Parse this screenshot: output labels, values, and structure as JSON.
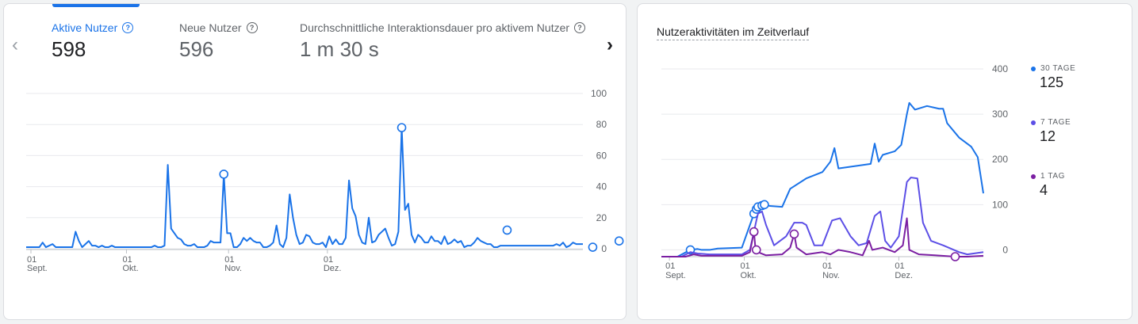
{
  "left_card": {
    "metrics": [
      {
        "label": "Aktive Nutzer",
        "value": "598",
        "active": true
      },
      {
        "label": "Neue Nutzer",
        "value": "596",
        "active": false
      },
      {
        "label": "Durchschnittliche Interaktionsdauer pro aktivem Nutzer",
        "value": "1 m 30 s",
        "active": false
      }
    ],
    "prev_icon": "chevron-left-icon",
    "next_icon": "chevron-right-icon"
  },
  "right_card": {
    "title": "Nutzeraktivitäten im Zeitverlauf",
    "legend": [
      {
        "label": "30 TAGE",
        "value": "125",
        "color": "#1a73e8"
      },
      {
        "label": "7 TAGE",
        "value": "12",
        "color": "#5c4fe6"
      },
      {
        "label": "1 TAG",
        "value": "4",
        "color": "#7b1fa2"
      }
    ]
  },
  "colors": {
    "accent": "#1a73e8",
    "series_30": "#1a73e8",
    "series_7": "#5c4fe6",
    "series_1": "#7b1fa2",
    "grid": "#e8eaed"
  },
  "chart_data": [
    {
      "type": "line",
      "title": "",
      "x_ticks": [
        {
          "day": "01",
          "month": "Sept."
        },
        {
          "day": "01",
          "month": "Okt."
        },
        {
          "day": "01",
          "month": "Nov."
        },
        {
          "day": "01",
          "month": "Dez."
        }
      ],
      "y_ticks": [
        0,
        20,
        40,
        60,
        80,
        100
      ],
      "ylim": [
        0,
        100
      ],
      "grid": true,
      "series": [
        {
          "color": "#1a73e8",
          "values": [
            1,
            1,
            1,
            1,
            1,
            4,
            1,
            2,
            3,
            1,
            1,
            1,
            1,
            1,
            1,
            11,
            5,
            1,
            3,
            5,
            2,
            2,
            1,
            2,
            1,
            1,
            2,
            1,
            1,
            1,
            1,
            1,
            1,
            1,
            1,
            1,
            1,
            1,
            1,
            2,
            1,
            1,
            2,
            54,
            13,
            10,
            7,
            6,
            3,
            2,
            2,
            3,
            1,
            1,
            1,
            2,
            5,
            4,
            4,
            4,
            48,
            10,
            10,
            1,
            1,
            3,
            7,
            5,
            7,
            5,
            4,
            4,
            1,
            1,
            2,
            4,
            15,
            3,
            1,
            7,
            35,
            20,
            9,
            3,
            4,
            9,
            8,
            4,
            3,
            3,
            4,
            1,
            8,
            3,
            6,
            3,
            3,
            7,
            44,
            26,
            21,
            9,
            4,
            3,
            20,
            4,
            5,
            9,
            11,
            13,
            7,
            2,
            3,
            11,
            78,
            25,
            29,
            9,
            4,
            9,
            7,
            4,
            4,
            8,
            5,
            5,
            3,
            8,
            3,
            4,
            6,
            4,
            5,
            1,
            2,
            2,
            4,
            7,
            5,
            4,
            3,
            3,
            1,
            1,
            2,
            2,
            2,
            2,
            2,
            2,
            2,
            2,
            2,
            2,
            2,
            2,
            2,
            2,
            2,
            2,
            2,
            3,
            2,
            4,
            1,
            2,
            4,
            3,
            3,
            3
          ],
          "points": [
            {
              "x": 60,
              "y": 48
            },
            {
              "x": 114,
              "y": 78
            },
            {
              "x": 146,
              "y": 12
            },
            {
              "x": 172,
              "y": 1
            },
            {
              "x": 180,
              "y": 5
            }
          ]
        }
      ]
    },
    {
      "type": "line",
      "title": "Nutzeraktivitäten im Zeitverlauf",
      "x_ticks": [
        {
          "day": "01",
          "month": "Sept."
        },
        {
          "day": "01",
          "month": "Okt."
        },
        {
          "day": "01",
          "month": "Nov."
        },
        {
          "day": "01",
          "month": "Dez."
        }
      ],
      "y_ticks": [
        0,
        100,
        200,
        300,
        400
      ],
      "ylim": [
        -15,
        400
      ],
      "grid": true,
      "series": [
        {
          "name": "30 TAGE",
          "color": "#1a73e8",
          "values": [
            {
              "x": 0,
              "y": -15
            },
            {
              "x": 20,
              "y": -15
            },
            {
              "x": 36,
              "y": 0
            },
            {
              "x": 45,
              "y": 2
            },
            {
              "x": 50,
              "y": 0
            },
            {
              "x": 60,
              "y": 0
            },
            {
              "x": 70,
              "y": 3
            },
            {
              "x": 100,
              "y": 5
            },
            {
              "x": 115,
              "y": 80
            },
            {
              "x": 118,
              "y": 90
            },
            {
              "x": 120,
              "y": 95
            },
            {
              "x": 125,
              "y": 98
            },
            {
              "x": 128,
              "y": 100
            },
            {
              "x": 135,
              "y": 97
            },
            {
              "x": 150,
              "y": 95
            },
            {
              "x": 160,
              "y": 135
            },
            {
              "x": 180,
              "y": 158
            },
            {
              "x": 200,
              "y": 172
            },
            {
              "x": 210,
              "y": 195
            },
            {
              "x": 215,
              "y": 225
            },
            {
              "x": 220,
              "y": 180
            },
            {
              "x": 240,
              "y": 185
            },
            {
              "x": 260,
              "y": 190
            },
            {
              "x": 265,
              "y": 235
            },
            {
              "x": 270,
              "y": 195
            },
            {
              "x": 275,
              "y": 210
            },
            {
              "x": 290,
              "y": 218
            },
            {
              "x": 298,
              "y": 232
            },
            {
              "x": 305,
              "y": 300
            },
            {
              "x": 308,
              "y": 325
            },
            {
              "x": 315,
              "y": 310
            },
            {
              "x": 330,
              "y": 318
            },
            {
              "x": 345,
              "y": 312
            },
            {
              "x": 350,
              "y": 312
            },
            {
              "x": 355,
              "y": 280
            },
            {
              "x": 370,
              "y": 248
            },
            {
              "x": 385,
              "y": 228
            },
            {
              "x": 393,
              "y": 205
            },
            {
              "x": 400,
              "y": 125
            }
          ],
          "points": [
            {
              "x": 36,
              "y": 0
            },
            {
              "x": 115,
              "y": 80
            },
            {
              "x": 118,
              "y": 90
            },
            {
              "x": 120,
              "y": 95
            },
            {
              "x": 125,
              "y": 98
            },
            {
              "x": 128,
              "y": 100
            }
          ]
        },
        {
          "name": "7 TAGE",
          "color": "#5c4fe6",
          "values": [
            {
              "x": 0,
              "y": -15
            },
            {
              "x": 25,
              "y": -15
            },
            {
              "x": 36,
              "y": -5
            },
            {
              "x": 45,
              "y": -8
            },
            {
              "x": 60,
              "y": -10
            },
            {
              "x": 100,
              "y": -10
            },
            {
              "x": 110,
              "y": 0
            },
            {
              "x": 115,
              "y": 40
            },
            {
              "x": 118,
              "y": 65
            },
            {
              "x": 120,
              "y": 80
            },
            {
              "x": 125,
              "y": 85
            },
            {
              "x": 130,
              "y": 55
            },
            {
              "x": 140,
              "y": 10
            },
            {
              "x": 155,
              "y": 30
            },
            {
              "x": 165,
              "y": 60
            },
            {
              "x": 175,
              "y": 60
            },
            {
              "x": 180,
              "y": 55
            },
            {
              "x": 190,
              "y": 10
            },
            {
              "x": 200,
              "y": 10
            },
            {
              "x": 212,
              "y": 65
            },
            {
              "x": 222,
              "y": 70
            },
            {
              "x": 235,
              "y": 30
            },
            {
              "x": 245,
              "y": 10
            },
            {
              "x": 255,
              "y": 15
            },
            {
              "x": 265,
              "y": 75
            },
            {
              "x": 272,
              "y": 85
            },
            {
              "x": 278,
              "y": 20
            },
            {
              "x": 285,
              "y": 5
            },
            {
              "x": 295,
              "y": 30
            },
            {
              "x": 305,
              "y": 150
            },
            {
              "x": 310,
              "y": 160
            },
            {
              "x": 318,
              "y": 158
            },
            {
              "x": 325,
              "y": 60
            },
            {
              "x": 335,
              "y": 20
            },
            {
              "x": 350,
              "y": 10
            },
            {
              "x": 370,
              "y": -5
            },
            {
              "x": 380,
              "y": -10
            },
            {
              "x": 400,
              "y": -5
            }
          ]
        },
        {
          "name": "1 TAG",
          "color": "#7b1fa2",
          "values": [
            {
              "x": 0,
              "y": -15
            },
            {
              "x": 30,
              "y": -15
            },
            {
              "x": 40,
              "y": -10
            },
            {
              "x": 50,
              "y": -13
            },
            {
              "x": 100,
              "y": -13
            },
            {
              "x": 110,
              "y": -5
            },
            {
              "x": 115,
              "y": 40
            },
            {
              "x": 117,
              "y": 0
            },
            {
              "x": 120,
              "y": -5
            },
            {
              "x": 130,
              "y": -12
            },
            {
              "x": 150,
              "y": -10
            },
            {
              "x": 160,
              "y": 5
            },
            {
              "x": 165,
              "y": 35
            },
            {
              "x": 168,
              "y": 5
            },
            {
              "x": 180,
              "y": -10
            },
            {
              "x": 200,
              "y": -5
            },
            {
              "x": 210,
              "y": -10
            },
            {
              "x": 220,
              "y": 0
            },
            {
              "x": 235,
              "y": -5
            },
            {
              "x": 250,
              "y": -12
            },
            {
              "x": 258,
              "y": 20
            },
            {
              "x": 262,
              "y": 0
            },
            {
              "x": 275,
              "y": 5
            },
            {
              "x": 290,
              "y": -5
            },
            {
              "x": 300,
              "y": 10
            },
            {
              "x": 305,
              "y": 70
            },
            {
              "x": 308,
              "y": 0
            },
            {
              "x": 320,
              "y": -10
            },
            {
              "x": 340,
              "y": -12
            },
            {
              "x": 365,
              "y": -15
            },
            {
              "x": 380,
              "y": -15
            },
            {
              "x": 400,
              "y": -13
            }
          ],
          "points": [
            {
              "x": 115,
              "y": 40
            },
            {
              "x": 118,
              "y": 0
            },
            {
              "x": 165,
              "y": 35
            },
            {
              "x": 365,
              "y": -15
            }
          ]
        }
      ]
    }
  ]
}
